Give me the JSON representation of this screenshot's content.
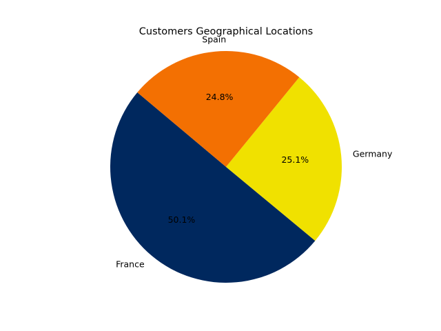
{
  "chart_data": {
    "type": "pie",
    "title": "Customers Geographical Locations",
    "slices": [
      {
        "label": "France",
        "value": 50.1,
        "pct_label": "50.1%",
        "color": "#00285e"
      },
      {
        "label": "Germany",
        "value": 25.1,
        "pct_label": "25.1%",
        "color": "#f0e100"
      },
      {
        "label": "Spain",
        "value": 24.8,
        "pct_label": "24.8%",
        "color": "#f37002"
      }
    ],
    "start_angle_deg": 140,
    "direction": "counterclockwise",
    "legend": "none"
  }
}
